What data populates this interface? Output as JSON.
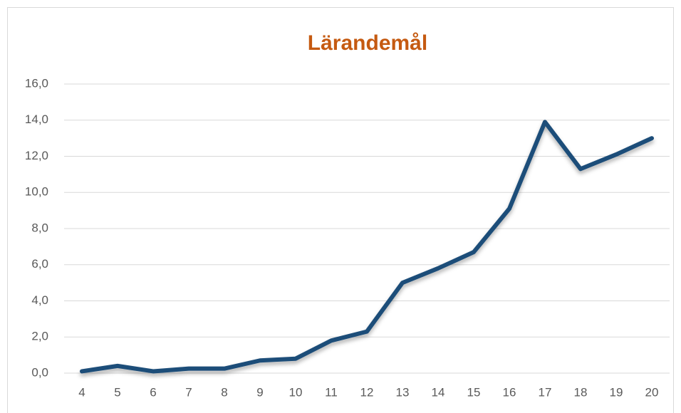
{
  "chart_data": {
    "type": "line",
    "title": "Lärandemål",
    "categories": [
      "4",
      "5",
      "6",
      "7",
      "8",
      "9",
      "10",
      "11",
      "12",
      "13",
      "14",
      "15",
      "16",
      "17",
      "18",
      "19",
      "20"
    ],
    "series": [
      {
        "name": "Lärandemål",
        "color": "#1f4e79",
        "values": [
          0.1,
          0.4,
          0.1,
          0.25,
          0.25,
          0.7,
          0.8,
          1.8,
          2.3,
          5.0,
          5.8,
          6.7,
          9.1,
          13.9,
          11.3,
          12.1,
          13.0
        ]
      }
    ],
    "title_color": "#c55a11",
    "ylim": [
      0,
      16
    ],
    "yticks": [
      {
        "value": 0,
        "label": "0,0"
      },
      {
        "value": 2,
        "label": "2,0"
      },
      {
        "value": 4,
        "label": "4,0"
      },
      {
        "value": 6,
        "label": "6,0"
      },
      {
        "value": 8,
        "label": "8,0"
      },
      {
        "value": 10,
        "label": "10,0"
      },
      {
        "value": 12,
        "label": "12,0"
      },
      {
        "value": 14,
        "label": "14,0"
      },
      {
        "value": 16,
        "label": "16,0"
      }
    ],
    "grid": true
  }
}
